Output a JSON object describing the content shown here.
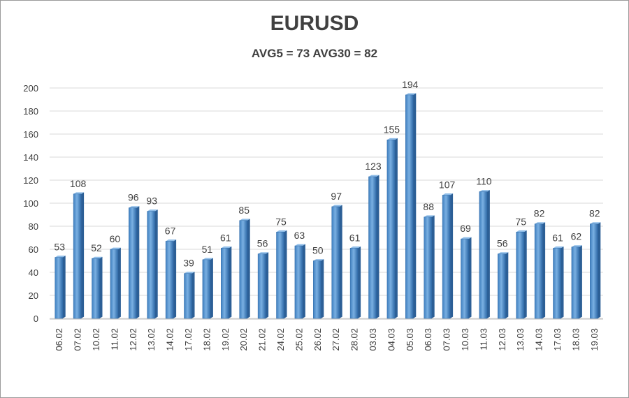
{
  "chart_data": {
    "type": "bar",
    "title": "EURUSD",
    "subtitle": "AVG5 = 73 AVG30 = 82",
    "xlabel": "",
    "ylabel": "",
    "ylim": [
      0,
      200
    ],
    "yticks": [
      0,
      20,
      40,
      60,
      80,
      100,
      120,
      140,
      160,
      180,
      200
    ],
    "grid": true,
    "categories": [
      "06.02",
      "07.02",
      "10.02",
      "11.02",
      "12.02",
      "13.02",
      "14.02",
      "17.02",
      "18.02",
      "19.02",
      "20.02",
      "21.02",
      "24.02",
      "25.02",
      "26.02",
      "27.02",
      "28.02",
      "03.03",
      "04.03",
      "05.03",
      "06.03",
      "07.03",
      "10.03",
      "11.03",
      "12.03",
      "13.03",
      "14.03",
      "17.03",
      "18.03",
      "19.03"
    ],
    "values": [
      53,
      108,
      52,
      60,
      96,
      93,
      67,
      39,
      51,
      61,
      85,
      56,
      75,
      63,
      50,
      97,
      61,
      123,
      155,
      194,
      88,
      107,
      69,
      110,
      56,
      75,
      82,
      61,
      62,
      82
    ],
    "bar_color": "#5b9bd5"
  }
}
